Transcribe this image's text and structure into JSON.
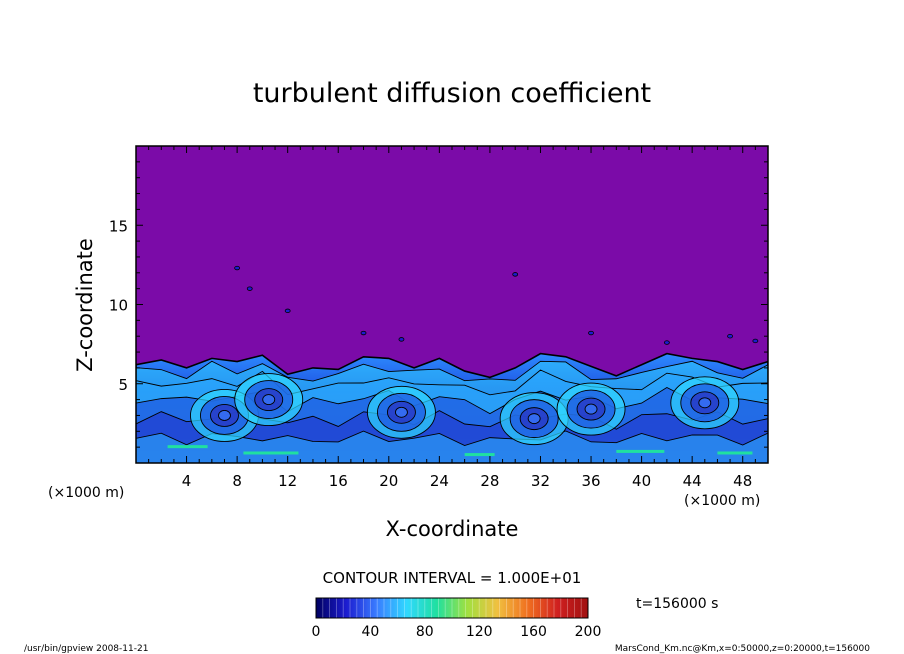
{
  "chart_data": {
    "type": "heatmap",
    "title": "turbulent diffusion coefficient",
    "xlabel": "X-coordinate",
    "ylabel": "Z-coordinate",
    "x_unit_label": "(×1000 m)",
    "x_unit_label_left": "(×1000 m)",
    "xlim": [
      0,
      50
    ],
    "ylim": [
      0,
      20
    ],
    "x_ticks": [
      4,
      8,
      12,
      16,
      20,
      24,
      28,
      32,
      36,
      40,
      44,
      48
    ],
    "y_ticks": [
      5,
      10,
      15
    ],
    "contour_interval_text": "CONTOUR INTERVAL = 1.000E+01",
    "time_label": "t=156000 s",
    "colorbar": {
      "range": [
        0,
        200
      ],
      "ticks": [
        0,
        40,
        80,
        120,
        160,
        200
      ],
      "stops": [
        "#000060",
        "#1c1cd0",
        "#3a7cff",
        "#30d8ff",
        "#20e0a0",
        "#a0e040",
        "#f0c040",
        "#f07020",
        "#d02020",
        "#a01010"
      ]
    },
    "background_value_color": "#7b0ba8",
    "turbulent_layer_top_km": [
      [
        0,
        6.2
      ],
      [
        2,
        6.5
      ],
      [
        4,
        6.0
      ],
      [
        6,
        6.6
      ],
      [
        8,
        6.4
      ],
      [
        10,
        6.8
      ],
      [
        12,
        5.6
      ],
      [
        14,
        6.0
      ],
      [
        16,
        5.9
      ],
      [
        18,
        6.7
      ],
      [
        20,
        6.6
      ],
      [
        22,
        6.0
      ],
      [
        24,
        6.6
      ],
      [
        26,
        5.8
      ],
      [
        28,
        5.4
      ],
      [
        30,
        6.0
      ],
      [
        32,
        6.9
      ],
      [
        34,
        6.7
      ],
      [
        36,
        6.1
      ],
      [
        38,
        5.5
      ],
      [
        40,
        6.2
      ],
      [
        42,
        6.9
      ],
      [
        44,
        6.6
      ],
      [
        46,
        6.4
      ],
      [
        48,
        5.9
      ],
      [
        50,
        6.4
      ]
    ],
    "eddy_centers_km": [
      [
        7,
        3.0
      ],
      [
        10.5,
        4.0
      ],
      [
        21,
        3.2
      ],
      [
        31.5,
        2.8
      ],
      [
        36,
        3.4
      ],
      [
        45,
        3.8
      ]
    ]
  },
  "footer": {
    "left": "/usr/bin/gpview   2008-11-21",
    "right": "MarsCond_Km.nc@Km,x=0:50000,z=0:20000,t=156000"
  }
}
